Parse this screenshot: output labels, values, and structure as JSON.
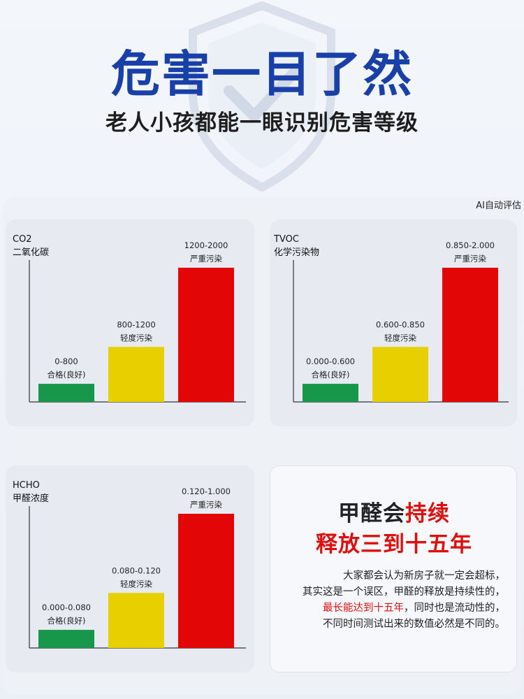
{
  "header": {
    "title": "危害一目了然",
    "subtitle": "老人小孩都能一眼识别危害等级"
  },
  "ai_note": "AI自动评估",
  "colors": {
    "good": "#17974a",
    "light": "#e8cf00",
    "severe": "#e30606",
    "title_blue": "#1840a8",
    "accent_red": "#e00d0d"
  },
  "chart_data": [
    {
      "type": "bar",
      "name_lines": [
        "CO2",
        "二氧化碳"
      ],
      "ranges": [
        {
          "range": "0-800",
          "level": "合格(良好)",
          "color": "#17974a",
          "value": 800
        },
        {
          "range": "800-1200",
          "level": "轻度污染",
          "color": "#e8cf00",
          "value": 1200
        },
        {
          "range": "1200-2000",
          "level": "严重污染",
          "color": "#e30606",
          "value": 2000
        }
      ]
    },
    {
      "type": "bar",
      "name_lines": [
        "TVOC",
        "化学污染物"
      ],
      "ranges": [
        {
          "range": "0.000-0.600",
          "level": "合格(良好)",
          "color": "#17974a",
          "value": 0.6
        },
        {
          "range": "0.600-0.850",
          "level": "轻度污染",
          "color": "#e8cf00",
          "value": 0.85
        },
        {
          "range": "0.850-2.000",
          "level": "严重污染",
          "color": "#e30606",
          "value": 2.0
        }
      ]
    },
    {
      "type": "bar",
      "name_lines": [
        "HCHO",
        "甲醛浓度"
      ],
      "ranges": [
        {
          "range": "0.000-0.080",
          "level": "合格(良好)",
          "color": "#17974a",
          "value": 0.08
        },
        {
          "range": "0.080-0.120",
          "level": "轻度污染",
          "color": "#e8cf00",
          "value": 0.12
        },
        {
          "range": "0.120-1.000",
          "level": "严重污染",
          "color": "#e30606",
          "value": 1.0
        }
      ]
    }
  ],
  "info_card": {
    "title_line1_black": "甲醛会",
    "title_line1_red": "持续",
    "title_line2": "释放三到十五年",
    "body_line1": "大家都会认为新房子就一定会超标，",
    "body_line2": "其实这是一个误区，甲醛的释放是持续性的，",
    "body_line3_red": "最长能达到十五年",
    "body_line3_rest": "，同时也是流动性的，",
    "body_line4": "不同时间测试出来的数值必然是不同的。"
  }
}
